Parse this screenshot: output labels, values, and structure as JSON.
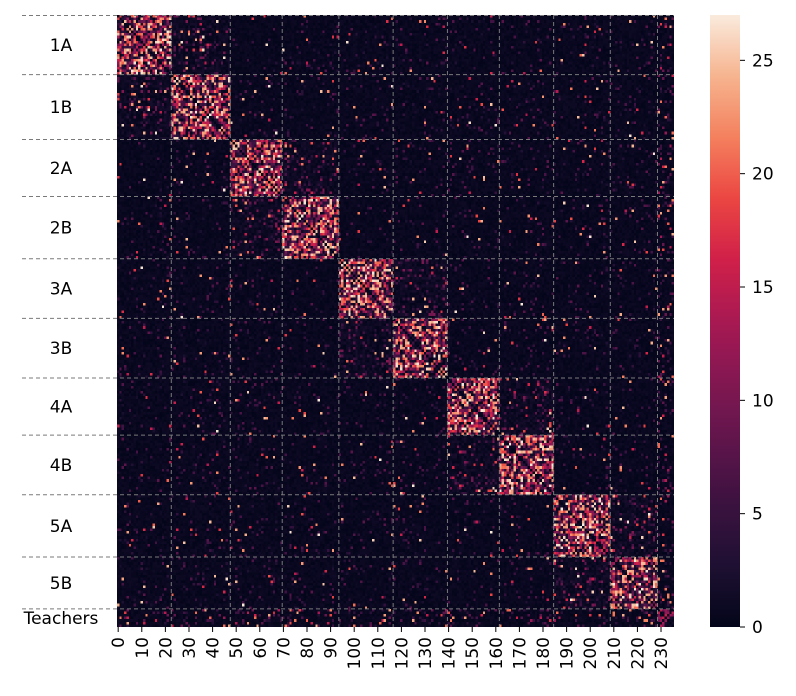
{
  "chart_data": {
    "type": "heatmap",
    "title": "",
    "xlabel": "",
    "ylabel": "",
    "n": 236,
    "value_range": [
      0,
      27
    ],
    "colormap": "rocket",
    "x_tick_values": [
      0,
      10,
      20,
      30,
      40,
      50,
      60,
      70,
      80,
      90,
      100,
      110,
      120,
      130,
      140,
      150,
      160,
      170,
      180,
      190,
      200,
      210,
      220,
      230
    ],
    "x_tick_labels": [
      "0",
      "10",
      "20",
      "30",
      "40",
      "50",
      "60",
      "70",
      "80",
      "90",
      "100",
      "110",
      "120",
      "130",
      "140",
      "150",
      "160",
      "170",
      "180",
      "190",
      "200",
      "210",
      "220",
      "230"
    ],
    "groups": [
      {
        "label": "1A",
        "start": 0,
        "end": 23
      },
      {
        "label": "1B",
        "start": 23,
        "end": 48
      },
      {
        "label": "2A",
        "start": 48,
        "end": 70
      },
      {
        "label": "2B",
        "start": 70,
        "end": 94
      },
      {
        "label": "3A",
        "start": 94,
        "end": 117
      },
      {
        "label": "3B",
        "start": 117,
        "end": 140
      },
      {
        "label": "4A",
        "start": 140,
        "end": 162
      },
      {
        "label": "4B",
        "start": 162,
        "end": 185
      },
      {
        "label": "5A",
        "start": 185,
        "end": 209
      },
      {
        "label": "5B",
        "start": 209,
        "end": 229
      },
      {
        "label": "Teachers",
        "start": 229,
        "end": 236
      }
    ],
    "colorbar_ticks": [
      0,
      5,
      10,
      15,
      20,
      25
    ],
    "colorbar_tick_labels": [
      "0",
      "5",
      "10",
      "15",
      "20",
      "25"
    ],
    "gridlines": "dashed group boundaries"
  }
}
